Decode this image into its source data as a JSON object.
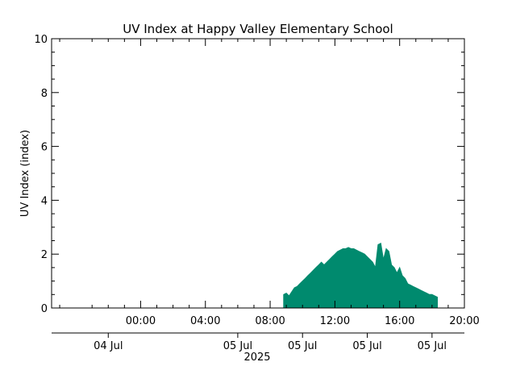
{
  "chart_data": {
    "type": "area",
    "title": "UV Index at Happy Valley Elementary School",
    "xlabel": "",
    "ylabel": "UV Index (index)",
    "ylim": [
      0,
      10
    ],
    "y_ticks": [
      0,
      2,
      4,
      6,
      8,
      10
    ],
    "xlim_hours": [
      -5.5,
      20.0
    ],
    "time_ticks": [
      "00:00",
      "04:00",
      "08:00",
      "12:00",
      "16:00",
      "20:00"
    ],
    "date_ticks": [
      "04 Jul",
      "05 Jul",
      "05 Jul",
      "05 Jul",
      "05 Jul"
    ],
    "year_label": "2025",
    "grid": false,
    "legend": "none",
    "fill_color": "#008a6e",
    "series": [
      {
        "x": [
          "08:50",
          "09:00",
          "09:10",
          "09:20",
          "09:30",
          "09:40",
          "09:50",
          "10:00",
          "10:10",
          "10:20",
          "10:30",
          "10:40",
          "10:50",
          "11:00",
          "11:10",
          "11:20",
          "11:30",
          "11:40",
          "11:50",
          "12:00",
          "12:10",
          "12:20",
          "12:30",
          "12:40",
          "12:50",
          "13:00",
          "13:10",
          "13:20",
          "13:30",
          "13:40",
          "13:50",
          "14:00",
          "14:10",
          "14:20",
          "14:30",
          "14:40",
          "14:50",
          "15:00",
          "15:10",
          "15:20",
          "15:30",
          "15:40",
          "15:50",
          "16:00",
          "16:10",
          "16:20",
          "16:30",
          "16:40",
          "16:50",
          "17:00",
          "17:10",
          "17:20",
          "17:30",
          "17:40",
          "17:50",
          "18:00",
          "18:10",
          "18:20"
        ],
        "values": [
          0.5,
          0.55,
          0.45,
          0.6,
          0.75,
          0.8,
          0.9,
          1.0,
          1.1,
          1.2,
          1.3,
          1.4,
          1.5,
          1.6,
          1.7,
          1.6,
          1.7,
          1.8,
          1.9,
          2.0,
          2.1,
          2.15,
          2.2,
          2.2,
          2.25,
          2.2,
          2.2,
          2.15,
          2.1,
          2.05,
          2.0,
          1.9,
          1.8,
          1.7,
          1.5,
          2.35,
          2.4,
          1.8,
          2.2,
          2.1,
          1.6,
          1.5,
          1.3,
          1.5,
          1.2,
          1.1,
          0.9,
          0.85,
          0.8,
          0.75,
          0.7,
          0.65,
          0.6,
          0.55,
          0.5,
          0.5,
          0.45,
          0.4
        ]
      }
    ]
  }
}
